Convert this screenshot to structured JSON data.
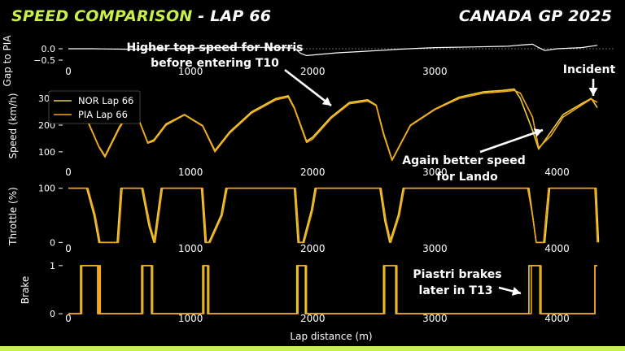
{
  "header": {
    "title_accent": "SPEED COMPARISON",
    "title_rest": " - LAP 66",
    "race": "CANADA GP 2025"
  },
  "colors": {
    "accent": "#c8f04a",
    "nor": "#e8d23c",
    "pia": "#f5a51c",
    "gap": "#ffffff",
    "background": "#000000"
  },
  "chart_data": [
    {
      "type": "line",
      "panel": "gap",
      "ylabel": "Gap to PIA",
      "ylim": [
        -0.5,
        0.5
      ],
      "yticks": [
        0.0,
        -0.5
      ],
      "ytick_labels": [
        "0.0",
        "−0.5"
      ],
      "xlim": [
        -60,
        4400
      ],
      "xticks": [
        0,
        1000,
        2000,
        3000
      ],
      "xtick_labels": [
        "0",
        "1000",
        "2000",
        "3000"
      ],
      "series": [
        {
          "key": "gap",
          "x": [
            0,
            200,
            500,
            800,
            1000,
            1200,
            1400,
            1700,
            1850,
            1900,
            1950,
            2050,
            2200,
            2400,
            2600,
            2700,
            3000,
            3300,
            3600,
            3700,
            3800,
            3850,
            3900,
            4000,
            4200,
            4330
          ],
          "y": [
            0.0,
            0.0,
            -0.02,
            0.0,
            0.02,
            0.05,
            0.06,
            0.06,
            0.03,
            -0.2,
            -0.3,
            -0.25,
            -0.18,
            -0.12,
            -0.06,
            -0.02,
            0.05,
            0.08,
            0.11,
            0.16,
            0.2,
            0.05,
            -0.08,
            0.0,
            0.05,
            0.15
          ]
        }
      ]
    },
    {
      "type": "line",
      "panel": "speed",
      "ylabel": "Speed (km/h)",
      "ylim": [
        60,
        340
      ],
      "yticks": [
        100,
        200,
        300
      ],
      "ytick_labels": [
        "100",
        "200",
        "300"
      ],
      "xlim": [
        -60,
        4400
      ],
      "xticks": [
        0,
        1000,
        2000,
        3000,
        4000
      ],
      "xtick_labels": [
        "0",
        "1000",
        "2000",
        "3000",
        "4000"
      ],
      "legend": "top-left",
      "series": [
        {
          "key": "nor",
          "name": "NOR Lap 66",
          "x": [
            0,
            150,
            250,
            300,
            420,
            480,
            560,
            650,
            700,
            800,
            950,
            1100,
            1200,
            1320,
            1500,
            1700,
            1800,
            1850,
            1950,
            2000,
            2150,
            2300,
            2450,
            2520,
            2580,
            2650,
            2800,
            3000,
            3200,
            3400,
            3550,
            3650,
            3700,
            3800,
            3850,
            3950,
            4050,
            4200,
            4280,
            4330
          ],
          "y": [
            250,
            225,
            120,
            85,
            195,
            235,
            240,
            135,
            145,
            205,
            240,
            198,
            105,
            175,
            250,
            300,
            310,
            265,
            140,
            155,
            230,
            285,
            295,
            275,
            170,
            70,
            200,
            260,
            305,
            325,
            330,
            335,
            300,
            180,
            110,
            175,
            240,
            280,
            300,
            265
          ]
        },
        {
          "key": "pia",
          "name": "PIA Lap 66",
          "x": [
            0,
            150,
            250,
            300,
            420,
            480,
            560,
            650,
            700,
            800,
            950,
            1100,
            1200,
            1320,
            1500,
            1700,
            1800,
            1850,
            1950,
            2000,
            2150,
            2300,
            2450,
            2520,
            2580,
            2650,
            2800,
            3000,
            3200,
            3400,
            3550,
            3650,
            3700,
            3800,
            3850,
            3950,
            4050,
            4200,
            4280,
            4330
          ],
          "y": [
            248,
            222,
            118,
            80,
            190,
            232,
            238,
            132,
            140,
            200,
            238,
            196,
            100,
            170,
            245,
            295,
            305,
            262,
            135,
            148,
            225,
            280,
            290,
            273,
            165,
            68,
            198,
            258,
            300,
            320,
            325,
            330,
            320,
            230,
            115,
            160,
            230,
            275,
            298,
            285
          ]
        }
      ]
    },
    {
      "type": "line",
      "panel": "throttle",
      "ylabel": "Throttle (%)",
      "ylim": [
        -10,
        110
      ],
      "yticks": [
        0,
        100
      ],
      "ytick_labels": [
        "0",
        "100"
      ],
      "xlim": [
        -60,
        4400
      ],
      "xticks": [
        0,
        1000,
        2000,
        3000,
        4000
      ],
      "xtick_labels": [
        "0",
        "1000",
        "2000",
        "3000",
        "4000"
      ],
      "series": [
        {
          "key": "nor",
          "x": [
            0,
            150,
            210,
            250,
            400,
            430,
            600,
            660,
            700,
            760,
            1090,
            1120,
            1150,
            1250,
            1290,
            1850,
            1880,
            1920,
            1990,
            2020,
            2550,
            2590,
            2630,
            2700,
            2740,
            3770,
            3800,
            3830,
            3900,
            3940,
            4320,
            4340
          ],
          "y": [
            100,
            100,
            50,
            0,
            0,
            100,
            100,
            30,
            0,
            100,
            100,
            0,
            0,
            50,
            100,
            100,
            0,
            0,
            60,
            100,
            100,
            40,
            0,
            50,
            100,
            100,
            50,
            0,
            0,
            100,
            100,
            0
          ]
        },
        {
          "key": "pia",
          "x": [
            0,
            160,
            220,
            260,
            410,
            440,
            610,
            670,
            710,
            770,
            1100,
            1130,
            1160,
            1260,
            1300,
            1860,
            1890,
            1930,
            2000,
            2030,
            2560,
            2600,
            2640,
            2710,
            2750,
            3760,
            3800,
            3830,
            3890,
            3930,
            4310,
            4330
          ],
          "y": [
            100,
            100,
            50,
            0,
            0,
            100,
            100,
            30,
            0,
            100,
            100,
            0,
            0,
            50,
            100,
            100,
            0,
            0,
            60,
            100,
            100,
            40,
            0,
            50,
            100,
            100,
            50,
            0,
            0,
            100,
            100,
            0
          ]
        }
      ]
    },
    {
      "type": "line",
      "panel": "brake",
      "ylabel": "Brake",
      "ylim": [
        -0.15,
        1.15
      ],
      "yticks": [
        0,
        1
      ],
      "ytick_labels": [
        "0",
        "1"
      ],
      "xlim": [
        -60,
        4400
      ],
      "xticks": [
        0,
        1000,
        2000,
        3000,
        4000
      ],
      "xtick_labels": [
        "0",
        "1000",
        "2000",
        "3000",
        "4000"
      ],
      "xlabel": "Lap distance (m)",
      "series": [
        {
          "key": "nor",
          "x": [
            0,
            100,
            100,
            240,
            240,
            250,
            250,
            255,
            255,
            600,
            600,
            680,
            680,
            1100,
            1100,
            1140,
            1140,
            1870,
            1870,
            1940,
            1940,
            2580,
            2580,
            2680,
            2680,
            3770,
            3770,
            3860,
            3860,
            4310,
            4310,
            4330
          ],
          "y": [
            0,
            0,
            1,
            1,
            0,
            0,
            1,
            1,
            0,
            0,
            1,
            1,
            0,
            0,
            1,
            1,
            0,
            0,
            1,
            1,
            0,
            0,
            1,
            1,
            0,
            0,
            1,
            1,
            0,
            0,
            1,
            1
          ]
        },
        {
          "key": "pia",
          "x": [
            0,
            110,
            110,
            245,
            245,
            256,
            256,
            262,
            262,
            610,
            610,
            690,
            690,
            1110,
            1110,
            1150,
            1150,
            1880,
            1880,
            1950,
            1950,
            2590,
            2590,
            2690,
            2690,
            3790,
            3790,
            3870,
            3870,
            4310,
            4310,
            4330
          ],
          "y": [
            0,
            0,
            1,
            1,
            0,
            0,
            1,
            1,
            0,
            0,
            1,
            1,
            0,
            0,
            1,
            1,
            0,
            0,
            1,
            1,
            0,
            0,
            1,
            1,
            0,
            0,
            1,
            1,
            0,
            0,
            1,
            1
          ]
        }
      ]
    }
  ],
  "annotations": [
    {
      "text": "Higher top speed for Norris",
      "line2": "before entering T10"
    },
    {
      "text": "Incident"
    },
    {
      "text": "Again better speed",
      "line2": "for Lando"
    },
    {
      "text": "Piastri brakes",
      "line2": "later in T13"
    }
  ]
}
